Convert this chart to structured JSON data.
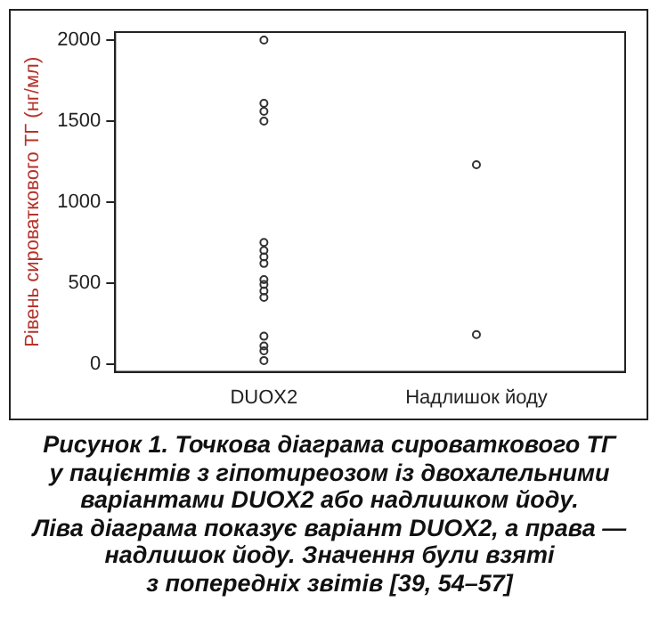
{
  "chart_data": {
    "type": "scatter",
    "ylabel": "Рівень сироваткового ТГ (нг/мл)",
    "categories": [
      "DUOX2",
      "Надлишок йоду"
    ],
    "series": [
      {
        "color": "#333333",
        "x": [
          "DUOX2",
          "DUOX2",
          "DUOX2",
          "DUOX2",
          "DUOX2",
          "DUOX2",
          "DUOX2",
          "DUOX2",
          "DUOX2",
          "DUOX2",
          "DUOX2",
          "DUOX2",
          "DUOX2",
          "DUOX2",
          "DUOX2",
          "DUOX2",
          "Надлишок йоду",
          "Надлишок йоду"
        ],
        "values": [
          2000,
          1610,
          1560,
          1500,
          750,
          700,
          660,
          620,
          520,
          490,
          450,
          410,
          170,
          110,
          80,
          20,
          1230,
          180
        ]
      }
    ],
    "ylim": [
      -50,
      2050
    ],
    "yticks": [
      0,
      500,
      1000,
      1500,
      2000
    ],
    "grid": false,
    "legend": false,
    "marker": "circle",
    "annotations": [
      "Рисунок 1. Точкова діаграма сироваткового ТГ\nу пацієнтів з гіпотиреозом із двохалельними\nваріантами DUOX2 або надлишком йоду.\nЛіва діаграма показує варіант DUOX2, а права —\nнадлишок йоду. Значення були взяті\nз попередніх звітів [39, 54–57]"
    ]
  }
}
